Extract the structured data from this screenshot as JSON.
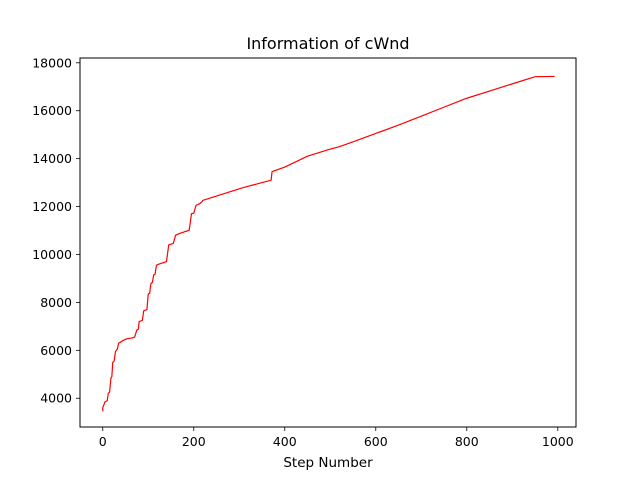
{
  "chart_data": {
    "type": "line",
    "title": "Information of cWnd",
    "xlabel": "Step Number",
    "ylabel": "",
    "xlim": [
      -50,
      1040
    ],
    "ylim": [
      2800,
      18200
    ],
    "xticks": [
      0,
      200,
      400,
      600,
      800,
      1000
    ],
    "yticks": [
      4000,
      6000,
      8000,
      10000,
      12000,
      14000,
      16000,
      18000
    ],
    "grid": false,
    "series": [
      {
        "color": "#ff0000",
        "x": [
          0,
          0,
          5,
          10,
          12,
          15,
          18,
          20,
          22,
          25,
          28,
          30,
          32,
          35,
          38,
          40,
          42,
          45,
          48,
          50,
          55,
          60,
          65,
          70,
          75,
          78,
          80,
          83,
          87,
          90,
          94,
          97,
          100,
          103,
          106,
          109,
          112,
          115,
          118,
          121,
          124,
          127,
          130,
          133,
          136,
          140,
          145,
          150,
          155,
          160,
          163,
          167,
          172,
          176,
          180,
          185,
          190,
          195,
          200,
          205,
          208,
          211,
          215,
          218,
          220,
          230,
          240,
          250,
          260,
          270,
          280,
          290,
          300,
          310,
          320,
          330,
          340,
          350,
          360,
          370,
          372,
          374,
          400,
          450,
          500,
          520,
          550,
          600,
          650,
          700,
          750,
          800,
          850,
          900,
          950,
          993
        ],
        "y": [
          3450,
          3600,
          3850,
          3900,
          4200,
          4250,
          4850,
          4900,
          5500,
          5550,
          5950,
          6000,
          6050,
          6300,
          6330,
          6350,
          6380,
          6420,
          6440,
          6460,
          6490,
          6500,
          6520,
          6550,
          6850,
          6880,
          7200,
          7220,
          7250,
          7650,
          7680,
          7700,
          8350,
          8380,
          8800,
          8830,
          9150,
          9180,
          9550,
          9580,
          9600,
          9620,
          9640,
          9660,
          9680,
          9700,
          10400,
          10430,
          10460,
          10800,
          10830,
          10860,
          10900,
          10920,
          10950,
          10980,
          11020,
          11700,
          11720,
          12050,
          12080,
          12100,
          12150,
          12200,
          12260,
          12320,
          12380,
          12440,
          12500,
          12560,
          12620,
          12680,
          12740,
          12800,
          12850,
          12900,
          12950,
          13000,
          13050,
          13100,
          13450,
          13470,
          13650,
          14100,
          14400,
          14500,
          14700,
          15050,
          15400,
          15770,
          16150,
          16520,
          16820,
          17120,
          17420,
          17430
        ]
      }
    ]
  }
}
